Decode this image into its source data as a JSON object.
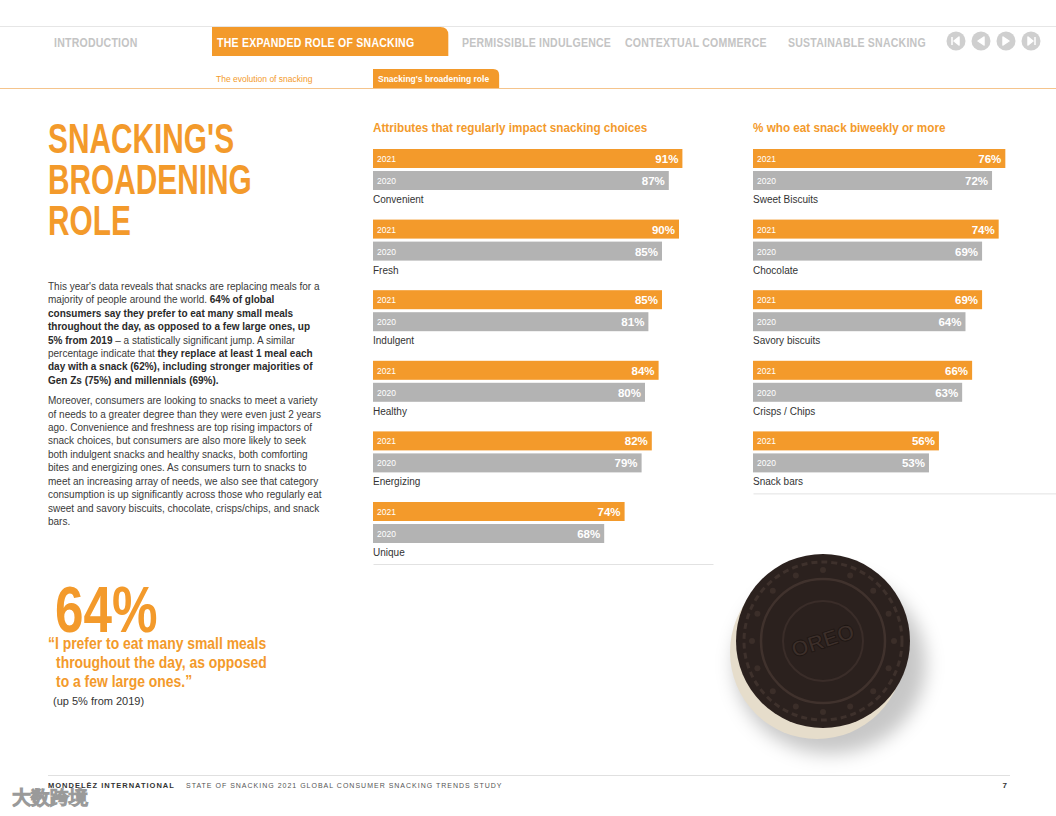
{
  "nav": {
    "tabs": [
      "INTRODUCTION",
      "THE EXPANDED ROLE OF SNACKING",
      "PERMISSIBLE INDULGENCE",
      "CONTEXTUAL COMMERCE",
      "SUSTAINABLE SNACKING"
    ],
    "active": 1,
    "subtabs": [
      "The evolution of snacking",
      "Snacking's broadening role"
    ],
    "subtab_active": 1
  },
  "heading": [
    "SNACKING'S",
    "BROADENING",
    "ROLE"
  ],
  "body": [
    [
      {
        "text": "This year's data reveals that snacks are replacing meals for a majority of people around the world. ",
        "bold": false
      },
      {
        "text": "64% of global consumers say they prefer to eat many small meals throughout the day, as opposed to a few large ones, up 5% from 2019",
        "bold": true
      },
      {
        "text": " – a statistically significant jump. A similar percentage indicate that ",
        "bold": false
      },
      {
        "text": "they replace at least 1 meal each day with a snack (62%), including stronger majorities of Gen Zs (75%) and millennials (69%).",
        "bold": true
      }
    ],
    [
      {
        "text": "Moreover, consumers are looking to snacks to meet a variety of needs to a greater degree than they were even just 2 years ago. Convenience and freshness are top rising impactors of snack choices, but consumers are also more likely to seek both indulgent snacks and healthy snacks, both comforting bites and energizing ones. As consumers turn to snacks to meet an increasing array of needs, we also see that category consumption is up significantly across those who regularly eat sweet and savory biscuits, chocolate, crisps/chips, and snack bars.",
        "bold": false
      }
    ]
  ],
  "callout": {
    "figure": "64%",
    "quote": [
      "“I prefer to eat many small meals",
      "throughout the day, as opposed",
      "to a few large ones.”"
    ],
    "note": "(up 5% from 2019)"
  },
  "chart_data": [
    {
      "type": "bar",
      "orientation": "horizontal",
      "title": "Attributes that regularly impact snacking choices",
      "categories": [
        "Convenient",
        "Fresh",
        "Indulgent",
        "Healthy",
        "Energizing",
        "Unique"
      ],
      "series": [
        {
          "name": "2021",
          "color": "#f39a2b",
          "values": [
            91,
            90,
            85,
            84,
            82,
            74
          ],
          "value_labels": [
            "91%",
            "90%",
            "85%",
            "84%",
            "82%",
            "74%"
          ]
        },
        {
          "name": "2020",
          "color": "#b3b3b3",
          "values": [
            87,
            85,
            81,
            80,
            79,
            68
          ],
          "value_labels": [
            "87%",
            "85%",
            "81%",
            "80%",
            "79%",
            "68%"
          ]
        }
      ],
      "xlim": [
        0,
        100
      ],
      "tick_labels": false,
      "data_labels": true
    },
    {
      "type": "bar",
      "orientation": "horizontal",
      "title": "% who eat snack biweekly or more",
      "categories": [
        "Sweet Biscuits",
        "Chocolate",
        "Savory biscuits",
        "Crisps / Chips",
        "Snack bars"
      ],
      "series": [
        {
          "name": "2021",
          "color": "#f39a2b",
          "values": [
            76,
            74,
            69,
            66,
            56
          ],
          "value_labels": [
            "76%",
            "74%",
            "69%",
            "66%",
            "56%"
          ]
        },
        {
          "name": "2020",
          "color": "#b3b3b3",
          "values": [
            72,
            69,
            64,
            63,
            53
          ],
          "value_labels": [
            "72%",
            "69%",
            "64%",
            "63%",
            "53%"
          ]
        }
      ],
      "xlim": [
        0,
        100
      ],
      "tick_labels": false,
      "data_labels": true
    }
  ],
  "cookie_text": "OREO",
  "footer": {
    "brand": "MONDELĒZ INTERNATIONAL",
    "title": "STATE OF SNACKING 2021 GLOBAL CONSUMER SNACKING TRENDS STUDY",
    "page": "7"
  },
  "watermark": "大数跨境"
}
